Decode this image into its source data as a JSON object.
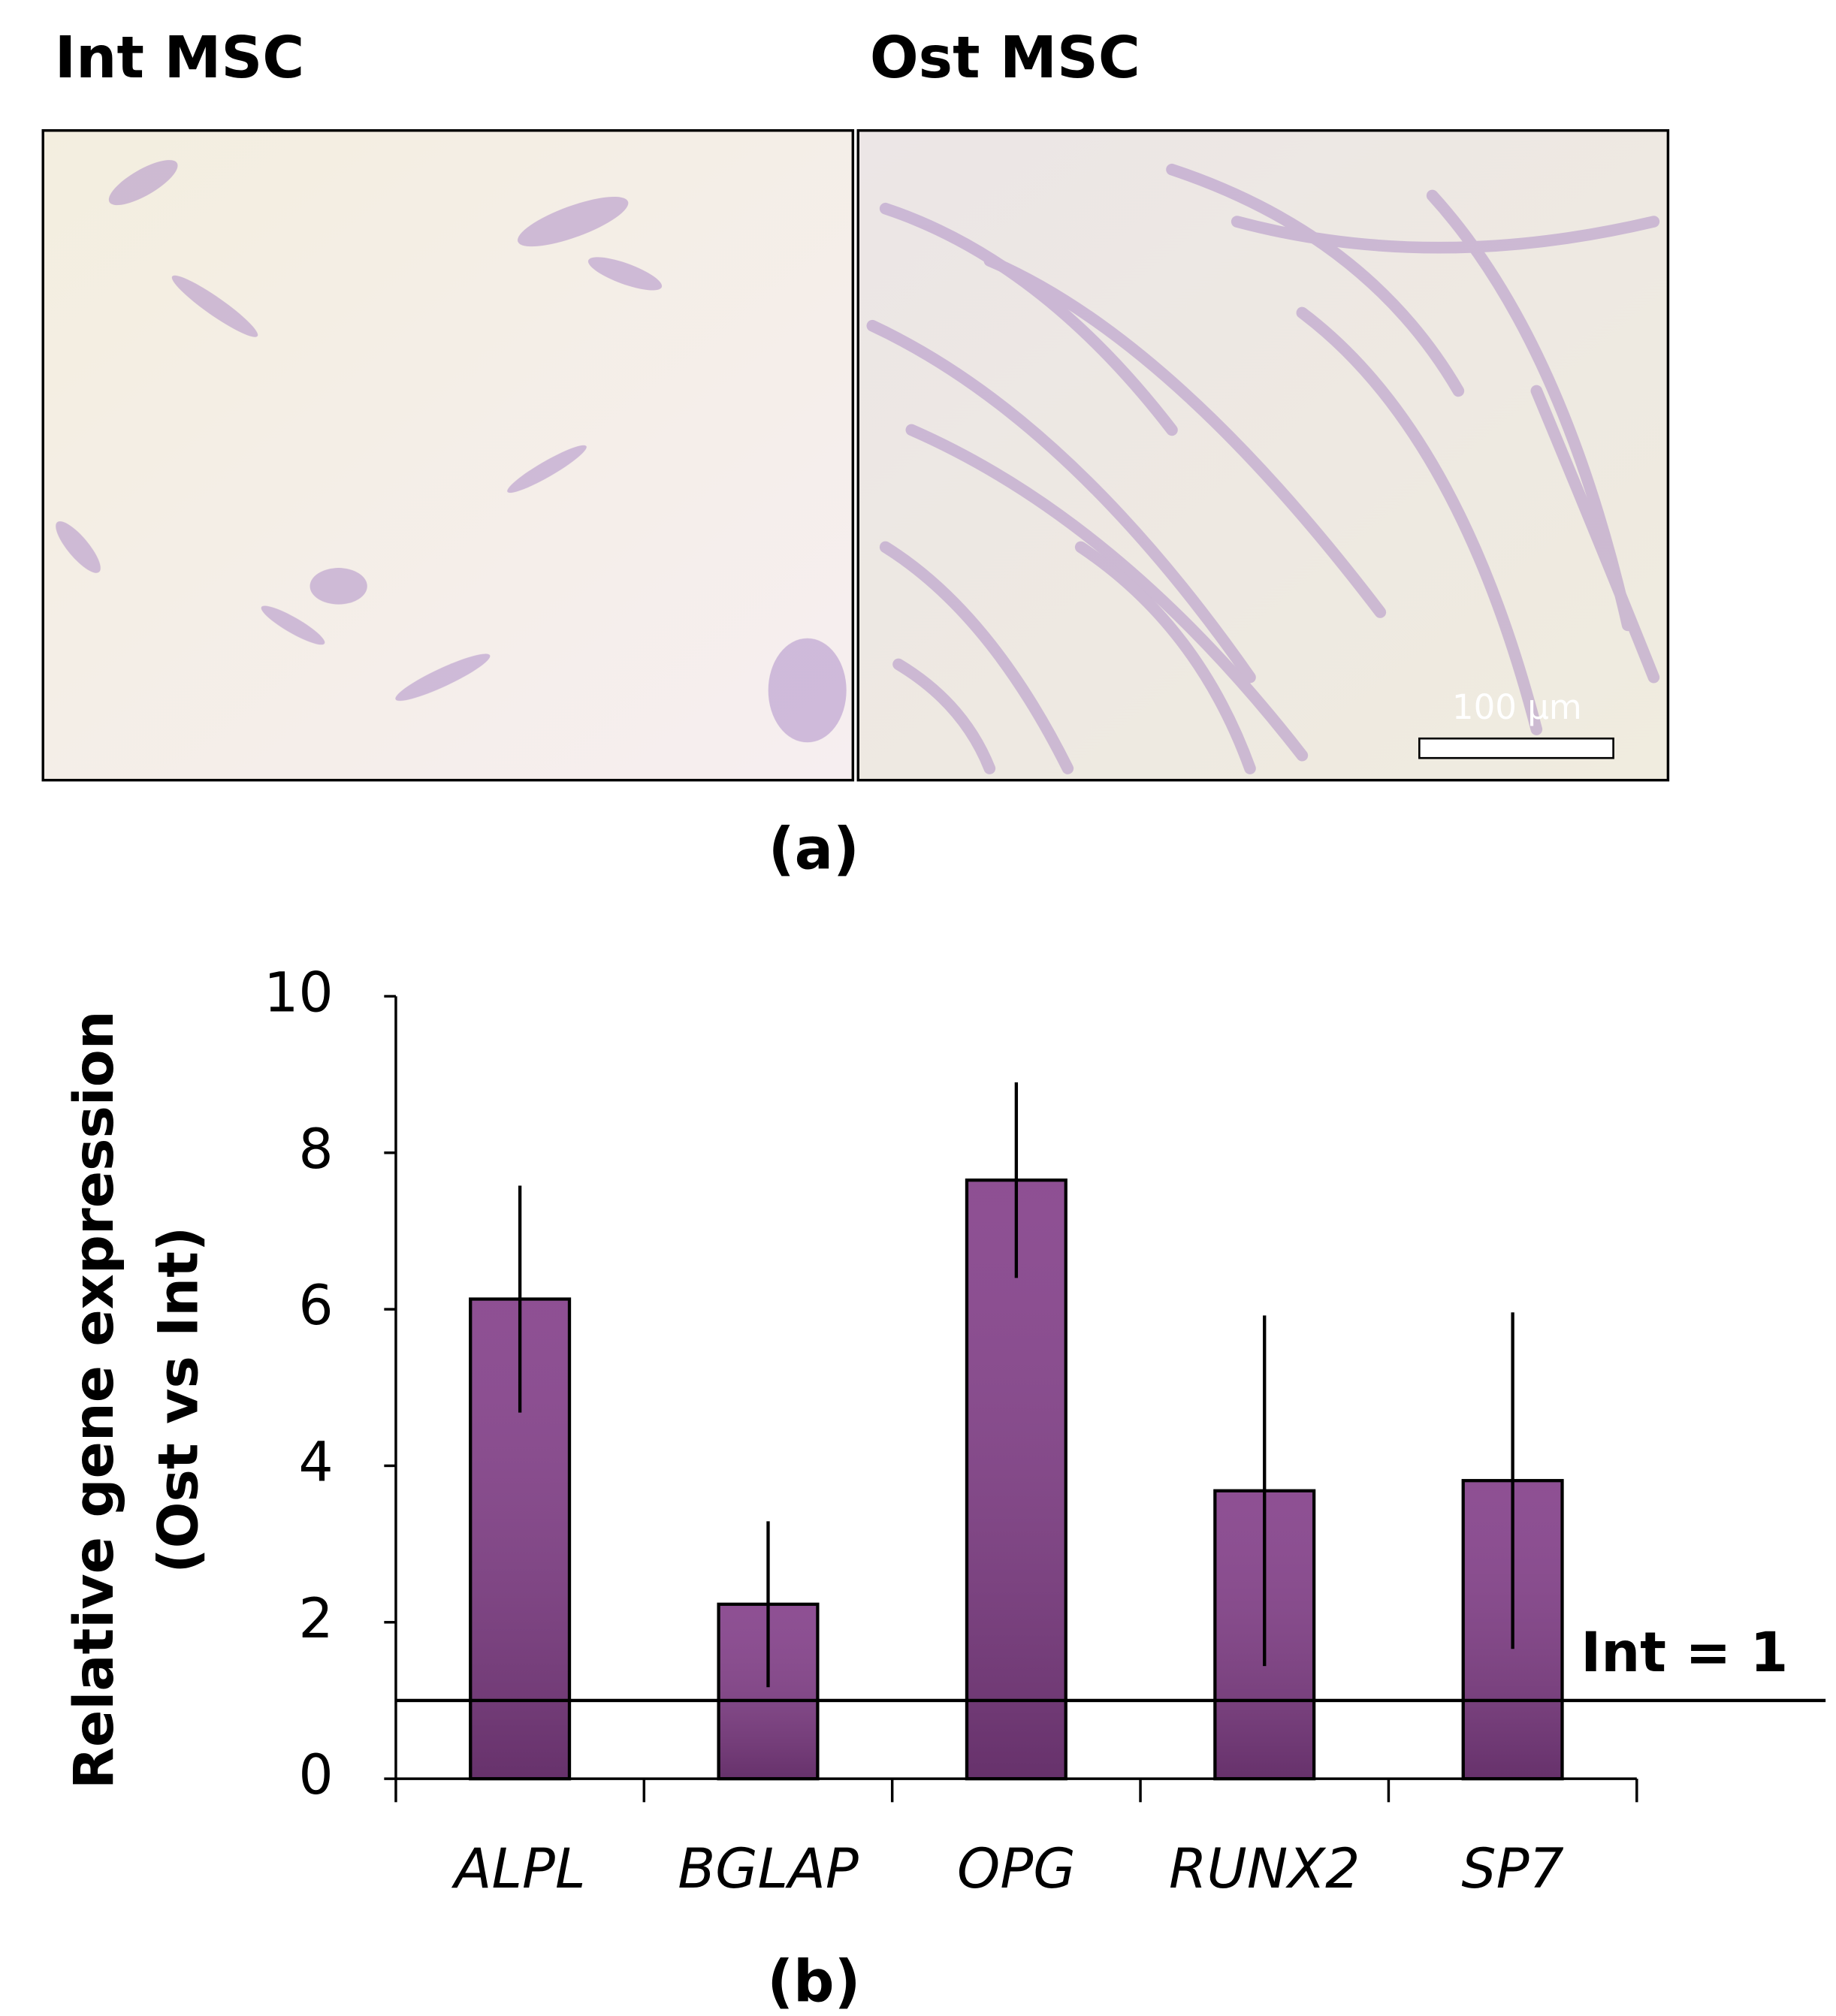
{
  "panel_a": {
    "left_title": "Int MSC",
    "right_title": "Ost MSC",
    "scale_bar": "100 µm",
    "caption": "(a)"
  },
  "chart_data": {
    "type": "bar",
    "y_label": [
      "Relative gene expression",
      "(Ost vs Int)"
    ],
    "categories": [
      "ALPL",
      "BGLAP",
      "OPG",
      "RUNX2",
      "SP7"
    ],
    "values": [
      6.13,
      2.23,
      7.65,
      3.68,
      3.81
    ],
    "errors": [
      1.45,
      1.06,
      1.25,
      2.24,
      2.15
    ],
    "color": "#84408a",
    "ylim": [
      0,
      10
    ],
    "yticks": [
      0,
      2,
      4,
      6,
      8,
      10
    ],
    "reference_line": {
      "value": 1,
      "label": "Int = 1"
    },
    "caption": "(b)"
  }
}
